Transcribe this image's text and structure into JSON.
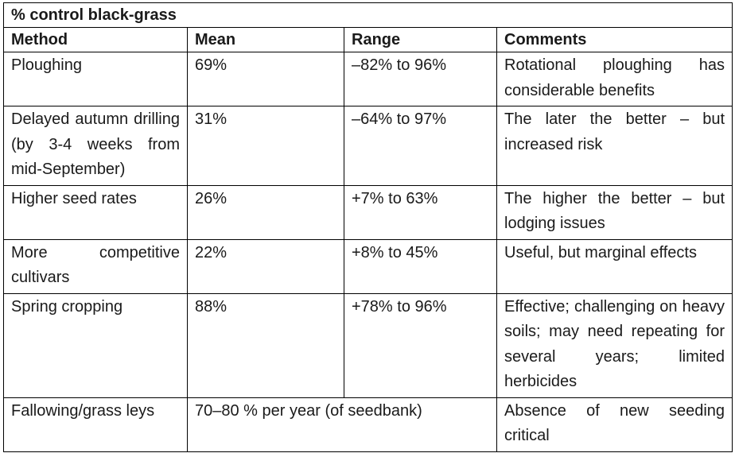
{
  "table": {
    "title": "% control black-grass",
    "headers": {
      "method": "Method",
      "mean": "Mean",
      "range": "Range",
      "comments": "Comments"
    },
    "rows": [
      {
        "method": "Ploughing",
        "mean": "69%",
        "range": "–82% to 96%",
        "comments": "Rotational ploughing has considerable benefits"
      },
      {
        "method": "Delayed autumn drilling (by 3-4 weeks from mid-September)",
        "mean": "31%",
        "range": "–64% to 97%",
        "comments": "The later the better – but increased risk"
      },
      {
        "method": "Higher seed rates",
        "mean": "26%",
        "range": "+7% to 63%",
        "comments": "The higher the better – but lodging issues"
      },
      {
        "method": "More competitive cultivars",
        "mean": "22%",
        "range": "+8% to 45%",
        "comments": "Useful, but marginal effects"
      },
      {
        "method": "Spring cropping",
        "mean": "88%",
        "range": "+78% to 96%",
        "comments": "Effective; challenging on heavy soils; may need repeating for several years; limited herbicides"
      },
      {
        "method": "Fallowing/grass leys",
        "mean_range": "70–80 % per year (of seedbank)",
        "comments": "Absence of new seeding critical"
      }
    ]
  }
}
